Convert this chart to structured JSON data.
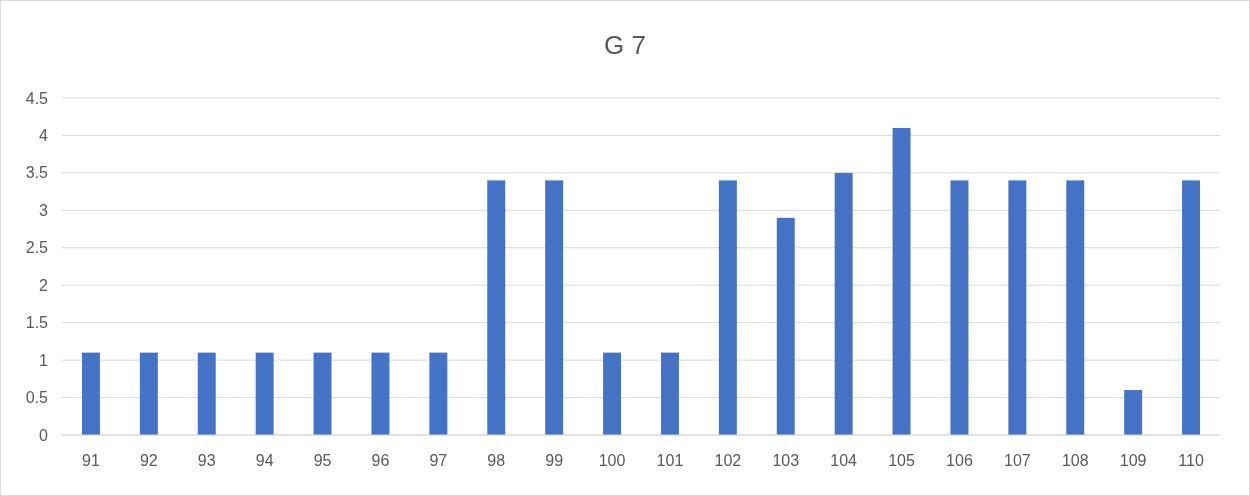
{
  "chart_data": {
    "type": "bar",
    "title": "G 7",
    "categories": [
      "91",
      "92",
      "93",
      "94",
      "95",
      "96",
      "97",
      "98",
      "99",
      "100",
      "101",
      "102",
      "103",
      "104",
      "105",
      "106",
      "107",
      "108",
      "109",
      "110"
    ],
    "values": [
      1.1,
      1.1,
      1.1,
      1.1,
      1.1,
      1.1,
      1.1,
      3.4,
      3.4,
      1.1,
      1.1,
      3.4,
      2.9,
      3.5,
      4.1,
      3.4,
      3.4,
      3.4,
      0.6,
      3.4
    ],
    "color": "#4472c4",
    "ylim": [
      0,
      4.5
    ],
    "yticks": [
      0,
      {
        "value": 0.5,
        "label": "0.5"
      },
      1,
      {
        "value": 1.5,
        "label": "1.5"
      },
      2,
      {
        "value": 2.5,
        "label": "2.5"
      },
      3,
      {
        "value": 3.5,
        "label": "3.5"
      },
      4,
      {
        "value": 4.5,
        "label": "4.5"
      }
    ],
    "grid": "y"
  }
}
